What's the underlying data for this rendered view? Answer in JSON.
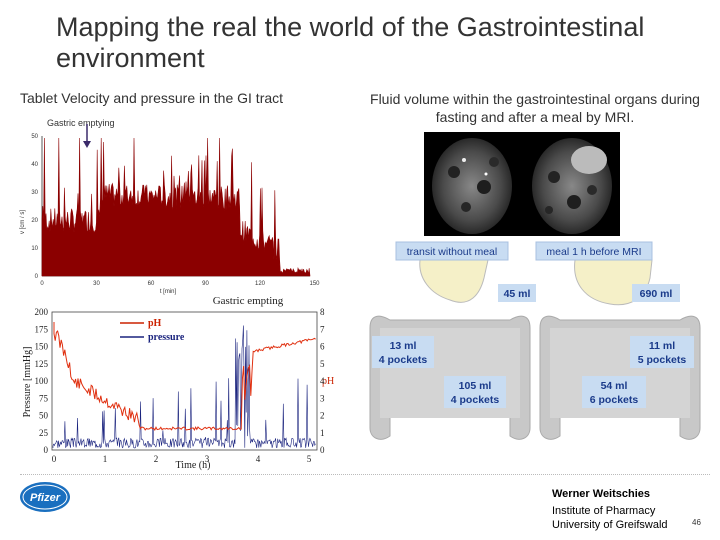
{
  "slide": {
    "title": "Mapping the real the world of the Gastrointestinal environment",
    "left_caption": "Tablet Velocity and pressure in the GI tract",
    "right_caption": "Fluid volume within the gastrointestinal organs during fasting and after a meal by MRI.",
    "gastric_label": "Gastric emptying"
  },
  "velocity_chart": {
    "ylabel": "v [cm / s]",
    "xlabel": "t [min]",
    "y_ticks": [
      "0",
      "10",
      "20",
      "30",
      "40",
      "50"
    ],
    "x_ticks": [
      "0",
      "30",
      "60",
      "90",
      "120",
      "150"
    ],
    "color": "#8b0000"
  },
  "pressure_chart": {
    "title": "Gastric empting",
    "ylabel": "Pressure [mmHg]",
    "y2label": "pH",
    "xlabel": "Time (h)",
    "y_ticks": [
      "0",
      "25",
      "50",
      "75",
      "100",
      "125",
      "150",
      "175",
      "200"
    ],
    "y2_ticks": [
      "0",
      "1",
      "2",
      "3",
      "4",
      "5",
      "6",
      "7",
      "8"
    ],
    "x_ticks": [
      "0",
      "1",
      "2",
      "3",
      "4",
      "5"
    ],
    "legend": [
      {
        "label": "pH",
        "color": "#cc2200"
      },
      {
        "label": "pressure",
        "color": "#1a237e"
      }
    ]
  },
  "mri": {
    "labels": {
      "transit_without_meal": "transit without meal",
      "meal_1h_before": "meal 1 h before MRI",
      "stomach_fasting": "45 ml",
      "stomach_fed": "690 ml",
      "small_fasting_vol": "13 ml",
      "small_fasting_pockets": "4 pockets",
      "small_fed_vol": "11 ml",
      "small_fed_pockets": "5 pockets",
      "colon_fasting_vol": "105 ml",
      "colon_fasting_pockets": "4 pockets",
      "colon_fed_vol": "54 ml",
      "colon_fed_pockets": "6 pockets"
    },
    "label_bg": "#c8dcf2",
    "label_color": "#1a3a8a"
  },
  "footer": {
    "logo_text": "Pfizer",
    "author": "Werner Weitschies",
    "institute": "Institute of Pharmacy",
    "university": "University of Greifswald",
    "page_number": "46"
  }
}
